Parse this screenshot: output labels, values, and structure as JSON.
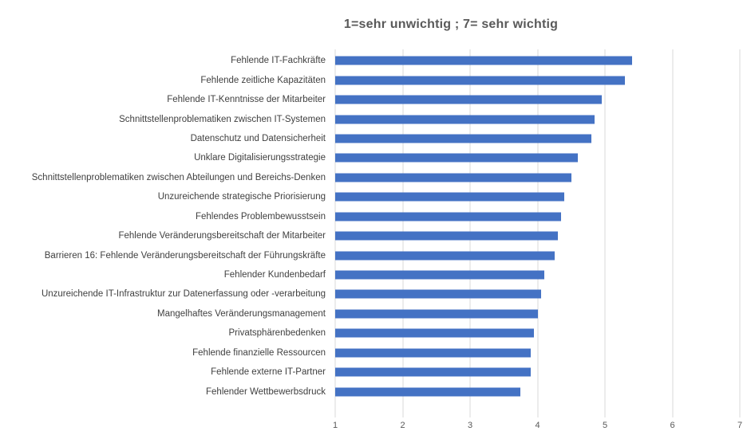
{
  "chart_data": {
    "type": "bar",
    "orientation": "horizontal",
    "title": "1=sehr unwichtig ; 7= sehr wichtig",
    "categories": [
      "Fehlende IT-Fachkräfte",
      "Fehlende zeitliche Kapazitäten",
      "Fehlende IT-Kenntnisse der Mitarbeiter",
      "Schnittstellenproblematiken zwischen IT-Systemen",
      "Datenschutz und Datensicherheit",
      "Unklare Digitalisierungsstrategie",
      "Schnittstellenproblematiken zwischen Abteilungen und Bereichs-Denken",
      "Unzureichende strategische Priorisierung",
      "Fehlendes Problembewusstsein",
      "Fehlende Veränderungsbereitschaft der Mitarbeiter",
      "Barrieren 16: Fehlende Veränderungsbereitschaft der Führungskräfte",
      "Fehlender Kundenbedarf",
      "Unzureichende IT-Infrastruktur zur Datenerfassung oder -verarbeitung",
      "Mangelhaftes Veränderungsmanagement",
      "Privatsphärenbedenken",
      "Fehlende finanzielle Ressourcen",
      "Fehlende externe IT-Partner",
      "Fehlender Wettbewerbsdruck"
    ],
    "values": [
      5.4,
      5.3,
      4.95,
      4.85,
      4.8,
      4.6,
      4.5,
      4.4,
      4.35,
      4.3,
      4.25,
      4.1,
      4.05,
      4.0,
      3.95,
      3.9,
      3.9,
      3.75
    ],
    "xlim": [
      1,
      7
    ],
    "x_ticks": [
      "1",
      "2",
      "3",
      "4",
      "5",
      "6",
      "7"
    ],
    "bar_color": "#4472C4",
    "gridline_color": "#D9D9D9",
    "title_color": "#595959",
    "label_color": "#404040",
    "tick_label_color": "#595959",
    "grid": "vertical-major",
    "legend": "none"
  }
}
